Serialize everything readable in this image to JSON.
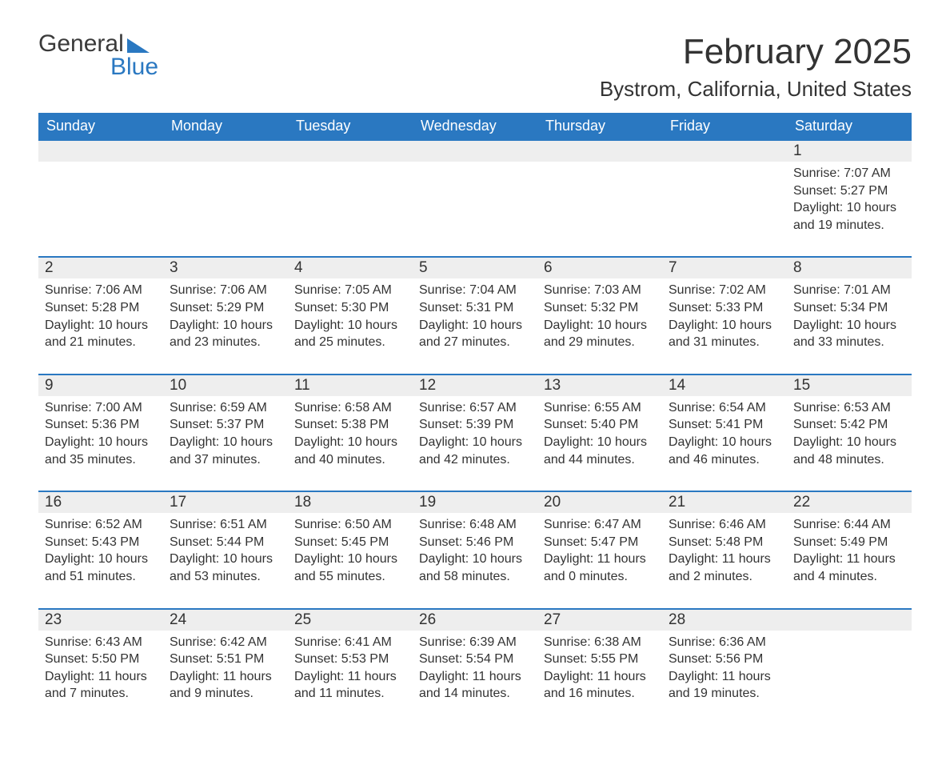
{
  "logo": {
    "top": "General",
    "bottom": "Blue"
  },
  "title": "February 2025",
  "location": "Bystrom, California, United States",
  "colors": {
    "header_bg": "#2a78c1",
    "header_text": "#ffffff",
    "num_row_bg": "#eeeeee",
    "border": "#2a78c1",
    "body_text": "#333333",
    "page_bg": "#ffffff"
  },
  "font": {
    "family": "Segoe UI",
    "title_size": 44,
    "location_size": 26,
    "dow_size": 18,
    "cell_size": 16
  },
  "days_of_week": [
    "Sunday",
    "Monday",
    "Tuesday",
    "Wednesday",
    "Thursday",
    "Friday",
    "Saturday"
  ],
  "weeks": [
    [
      {
        "n": "",
        "sunrise": "",
        "sunset": "",
        "daylight": ""
      },
      {
        "n": "",
        "sunrise": "",
        "sunset": "",
        "daylight": ""
      },
      {
        "n": "",
        "sunrise": "",
        "sunset": "",
        "daylight": ""
      },
      {
        "n": "",
        "sunrise": "",
        "sunset": "",
        "daylight": ""
      },
      {
        "n": "",
        "sunrise": "",
        "sunset": "",
        "daylight": ""
      },
      {
        "n": "",
        "sunrise": "",
        "sunset": "",
        "daylight": ""
      },
      {
        "n": "1",
        "sunrise": "Sunrise: 7:07 AM",
        "sunset": "Sunset: 5:27 PM",
        "daylight": "Daylight: 10 hours and 19 minutes."
      }
    ],
    [
      {
        "n": "2",
        "sunrise": "Sunrise: 7:06 AM",
        "sunset": "Sunset: 5:28 PM",
        "daylight": "Daylight: 10 hours and 21 minutes."
      },
      {
        "n": "3",
        "sunrise": "Sunrise: 7:06 AM",
        "sunset": "Sunset: 5:29 PM",
        "daylight": "Daylight: 10 hours and 23 minutes."
      },
      {
        "n": "4",
        "sunrise": "Sunrise: 7:05 AM",
        "sunset": "Sunset: 5:30 PM",
        "daylight": "Daylight: 10 hours and 25 minutes."
      },
      {
        "n": "5",
        "sunrise": "Sunrise: 7:04 AM",
        "sunset": "Sunset: 5:31 PM",
        "daylight": "Daylight: 10 hours and 27 minutes."
      },
      {
        "n": "6",
        "sunrise": "Sunrise: 7:03 AM",
        "sunset": "Sunset: 5:32 PM",
        "daylight": "Daylight: 10 hours and 29 minutes."
      },
      {
        "n": "7",
        "sunrise": "Sunrise: 7:02 AM",
        "sunset": "Sunset: 5:33 PM",
        "daylight": "Daylight: 10 hours and 31 minutes."
      },
      {
        "n": "8",
        "sunrise": "Sunrise: 7:01 AM",
        "sunset": "Sunset: 5:34 PM",
        "daylight": "Daylight: 10 hours and 33 minutes."
      }
    ],
    [
      {
        "n": "9",
        "sunrise": "Sunrise: 7:00 AM",
        "sunset": "Sunset: 5:36 PM",
        "daylight": "Daylight: 10 hours and 35 minutes."
      },
      {
        "n": "10",
        "sunrise": "Sunrise: 6:59 AM",
        "sunset": "Sunset: 5:37 PM",
        "daylight": "Daylight: 10 hours and 37 minutes."
      },
      {
        "n": "11",
        "sunrise": "Sunrise: 6:58 AM",
        "sunset": "Sunset: 5:38 PM",
        "daylight": "Daylight: 10 hours and 40 minutes."
      },
      {
        "n": "12",
        "sunrise": "Sunrise: 6:57 AM",
        "sunset": "Sunset: 5:39 PM",
        "daylight": "Daylight: 10 hours and 42 minutes."
      },
      {
        "n": "13",
        "sunrise": "Sunrise: 6:55 AM",
        "sunset": "Sunset: 5:40 PM",
        "daylight": "Daylight: 10 hours and 44 minutes."
      },
      {
        "n": "14",
        "sunrise": "Sunrise: 6:54 AM",
        "sunset": "Sunset: 5:41 PM",
        "daylight": "Daylight: 10 hours and 46 minutes."
      },
      {
        "n": "15",
        "sunrise": "Sunrise: 6:53 AM",
        "sunset": "Sunset: 5:42 PM",
        "daylight": "Daylight: 10 hours and 48 minutes."
      }
    ],
    [
      {
        "n": "16",
        "sunrise": "Sunrise: 6:52 AM",
        "sunset": "Sunset: 5:43 PM",
        "daylight": "Daylight: 10 hours and 51 minutes."
      },
      {
        "n": "17",
        "sunrise": "Sunrise: 6:51 AM",
        "sunset": "Sunset: 5:44 PM",
        "daylight": "Daylight: 10 hours and 53 minutes."
      },
      {
        "n": "18",
        "sunrise": "Sunrise: 6:50 AM",
        "sunset": "Sunset: 5:45 PM",
        "daylight": "Daylight: 10 hours and 55 minutes."
      },
      {
        "n": "19",
        "sunrise": "Sunrise: 6:48 AM",
        "sunset": "Sunset: 5:46 PM",
        "daylight": "Daylight: 10 hours and 58 minutes."
      },
      {
        "n": "20",
        "sunrise": "Sunrise: 6:47 AM",
        "sunset": "Sunset: 5:47 PM",
        "daylight": "Daylight: 11 hours and 0 minutes."
      },
      {
        "n": "21",
        "sunrise": "Sunrise: 6:46 AM",
        "sunset": "Sunset: 5:48 PM",
        "daylight": "Daylight: 11 hours and 2 minutes."
      },
      {
        "n": "22",
        "sunrise": "Sunrise: 6:44 AM",
        "sunset": "Sunset: 5:49 PM",
        "daylight": "Daylight: 11 hours and 4 minutes."
      }
    ],
    [
      {
        "n": "23",
        "sunrise": "Sunrise: 6:43 AM",
        "sunset": "Sunset: 5:50 PM",
        "daylight": "Daylight: 11 hours and 7 minutes."
      },
      {
        "n": "24",
        "sunrise": "Sunrise: 6:42 AM",
        "sunset": "Sunset: 5:51 PM",
        "daylight": "Daylight: 11 hours and 9 minutes."
      },
      {
        "n": "25",
        "sunrise": "Sunrise: 6:41 AM",
        "sunset": "Sunset: 5:53 PM",
        "daylight": "Daylight: 11 hours and 11 minutes."
      },
      {
        "n": "26",
        "sunrise": "Sunrise: 6:39 AM",
        "sunset": "Sunset: 5:54 PM",
        "daylight": "Daylight: 11 hours and 14 minutes."
      },
      {
        "n": "27",
        "sunrise": "Sunrise: 6:38 AM",
        "sunset": "Sunset: 5:55 PM",
        "daylight": "Daylight: 11 hours and 16 minutes."
      },
      {
        "n": "28",
        "sunrise": "Sunrise: 6:36 AM",
        "sunset": "Sunset: 5:56 PM",
        "daylight": "Daylight: 11 hours and 19 minutes."
      },
      {
        "n": "",
        "sunrise": "",
        "sunset": "",
        "daylight": ""
      }
    ]
  ]
}
